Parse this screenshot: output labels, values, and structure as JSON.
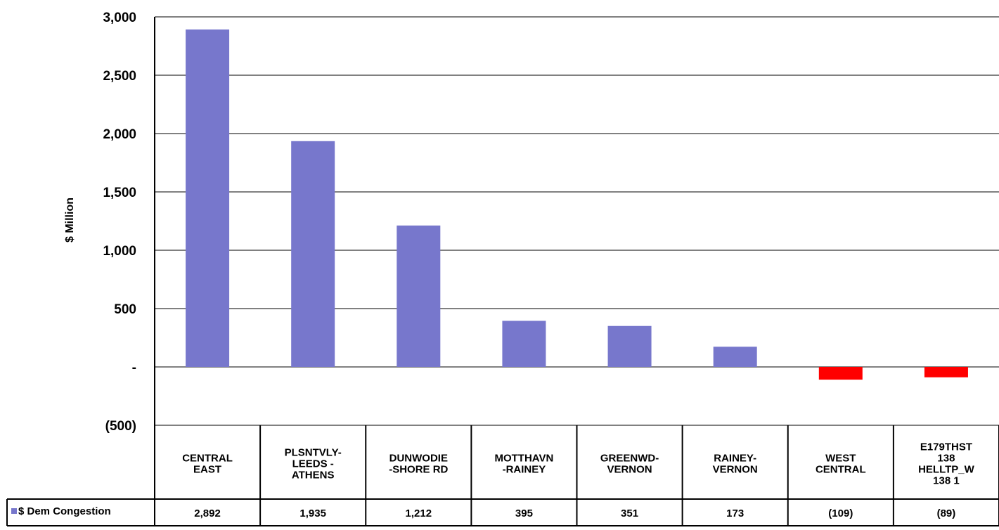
{
  "chart_data": {
    "type": "bar",
    "title": "",
    "xlabel": "",
    "ylabel": "$ Million",
    "ylim": [
      -500,
      3000
    ],
    "yticks": [
      {
        "value": 3000,
        "label": "3,000"
      },
      {
        "value": 2500,
        "label": "2,500"
      },
      {
        "value": 2000,
        "label": "2,000"
      },
      {
        "value": 1500,
        "label": "1,500"
      },
      {
        "value": 1000,
        "label": "1,000"
      },
      {
        "value": 500,
        "label": "500"
      },
      {
        "value": 0,
        "label": "-"
      },
      {
        "value": -500,
        "label": "(500)"
      }
    ],
    "grid": true,
    "legend": "left, in data table",
    "categories": [
      [
        "CENTRAL",
        "EAST"
      ],
      [
        "PLSNTVLY-",
        "LEEDS -",
        "ATHENS"
      ],
      [
        "DUNWODIE",
        "-SHORE RD"
      ],
      [
        "MOTTHAVN",
        "-RAINEY"
      ],
      [
        "GREENWD-",
        "VERNON"
      ],
      [
        "RAINEY-",
        "VERNON"
      ],
      [
        "WEST",
        "CENTRAL"
      ],
      [
        "E179THST",
        "138",
        "HELLTP_W",
        "138 1"
      ]
    ],
    "series": [
      {
        "name": "$ Dem Congestion",
        "values": [
          2892,
          1935,
          1212,
          395,
          351,
          173,
          -109,
          -89
        ],
        "labels": [
          "2,892",
          "1,935",
          "1,212",
          "395",
          "351",
          "173",
          "(109)",
          "(89)"
        ],
        "color": "#7777cc",
        "negative_color": "#ff0000"
      }
    ]
  }
}
